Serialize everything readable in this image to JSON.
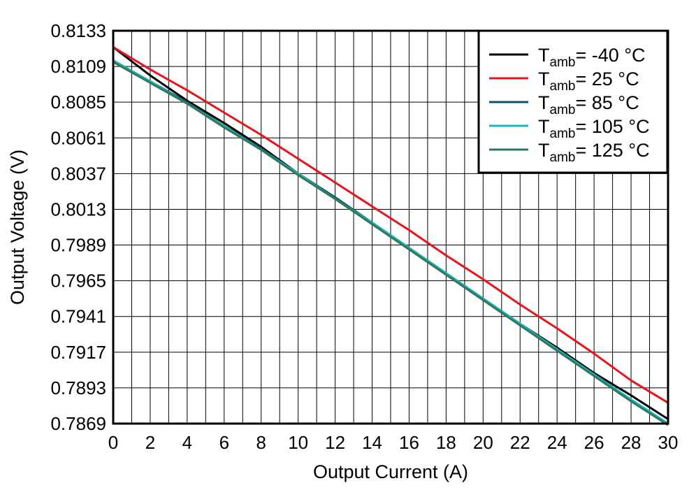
{
  "chart_data": {
    "type": "line",
    "title": "",
    "xlabel": "Output Current (A)",
    "ylabel": "Output Voltage (V)",
    "xlim": [
      0,
      30
    ],
    "ylim": [
      0.7869,
      0.8133
    ],
    "grid": true,
    "legend_position": "top-right",
    "x_ticks": [
      "0",
      "2",
      "4",
      "6",
      "8",
      "10",
      "12",
      "14",
      "16",
      "18",
      "20",
      "22",
      "24",
      "26",
      "28",
      "30"
    ],
    "y_ticks": [
      "0.8133",
      "0.8109",
      "0.8085",
      "0.8061",
      "0.8037",
      "0.8013",
      "0.7989",
      "0.7965",
      "0.7941",
      "0.7917",
      "0.7893",
      "0.7869"
    ],
    "x_minor_step": 1,
    "series": [
      {
        "name": "-40 °C",
        "legend_main": "T",
        "legend_sub": "amb",
        "legend_rest": "= -40 °C",
        "color": "#000000",
        "x": [
          0,
          2,
          4,
          6,
          8,
          10,
          12,
          14,
          16,
          18,
          20,
          22,
          24,
          26,
          28,
          30
        ],
        "y": [
          0.8122,
          0.8103,
          0.8086,
          0.8071,
          0.8055,
          0.8037,
          0.8021,
          0.8004,
          0.7987,
          0.797,
          0.7953,
          0.7936,
          0.792,
          0.7903,
          0.7888,
          0.7872
        ]
      },
      {
        "name": "25 °C",
        "legend_main": "T",
        "legend_sub": "amb",
        "legend_rest": "= 25 °C",
        "color": "#e8131b",
        "x": [
          0,
          2,
          4,
          6,
          8,
          10,
          12,
          14,
          16,
          18,
          20,
          22,
          24,
          26,
          28,
          30
        ],
        "y": [
          0.8122,
          0.8107,
          0.8093,
          0.8078,
          0.8063,
          0.8047,
          0.8031,
          0.8015,
          0.7999,
          0.7982,
          0.7966,
          0.7949,
          0.7933,
          0.7916,
          0.7898,
          0.7883
        ]
      },
      {
        "name": "85 °C",
        "legend_main": "T",
        "legend_sub": "amb",
        "legend_rest": "= 85 °C",
        "color": "#124f6e",
        "x": [
          0,
          2,
          4,
          6,
          8,
          10,
          12,
          14,
          16,
          18,
          20,
          22,
          24,
          26,
          28,
          30
        ],
        "y": [
          0.8113,
          0.8099,
          0.8085,
          0.8069,
          0.8054,
          0.8037,
          0.8021,
          0.8004,
          0.7987,
          0.797,
          0.7953,
          0.7936,
          0.7919,
          0.7902,
          0.7885,
          0.7869
        ]
      },
      {
        "name": "105 °C",
        "legend_main": "T",
        "legend_sub": "amb",
        "legend_rest": "= 105 °C",
        "color": "#16b4c8",
        "x": [
          0,
          2,
          4,
          6,
          8,
          10,
          12,
          14,
          16,
          18,
          20,
          22,
          24,
          26,
          28,
          30
        ],
        "y": [
          0.8113,
          0.8099,
          0.8084,
          0.8069,
          0.8053,
          0.8037,
          0.802,
          0.8004,
          0.7987,
          0.797,
          0.7953,
          0.7936,
          0.7919,
          0.7902,
          0.7885,
          0.7869
        ]
      },
      {
        "name": "125 °C",
        "legend_main": "T",
        "legend_sub": "amb",
        "legend_rest": "= 125 °C",
        "color": "#2e7a55",
        "x": [
          0,
          2,
          4,
          6,
          8,
          10,
          12,
          14,
          16,
          18,
          20,
          22,
          24,
          26,
          28,
          30
        ],
        "y": [
          0.8112,
          0.8098,
          0.8084,
          0.8068,
          0.8053,
          0.8036,
          0.802,
          0.8003,
          0.7986,
          0.7969,
          0.7952,
          0.7935,
          0.7918,
          0.7901,
          0.7884,
          0.7868
        ]
      }
    ]
  }
}
